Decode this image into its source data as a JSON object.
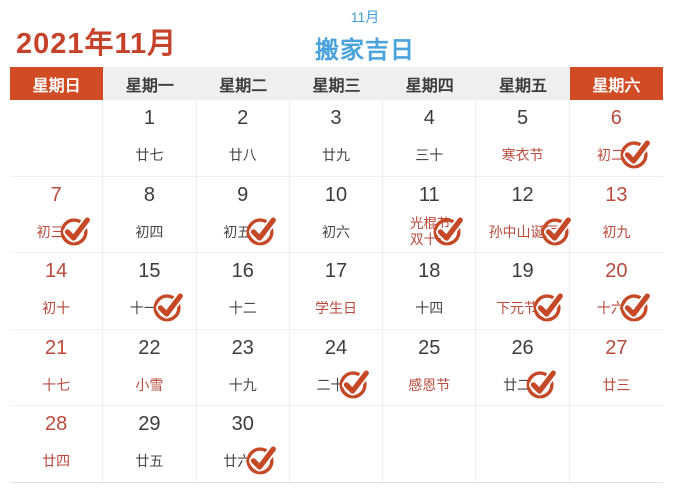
{
  "header": {
    "title": "2021年11月",
    "subtitle_month": "11月",
    "subtitle": "搬家吉日"
  },
  "weekday_headers": [
    "星期日",
    "星期一",
    "星期二",
    "星期三",
    "星期四",
    "星期五",
    "星期六"
  ],
  "weekday_names_en": [
    "sunday",
    "monday",
    "tuesday",
    "wednesday",
    "thursday",
    "friday",
    "saturday"
  ],
  "highlight_columns": [
    0,
    6
  ],
  "colors": {
    "accent_orange": "#d14b24",
    "red_text": "#b94a3c",
    "blue_text": "#4aa3dc",
    "title_red": "#c4432a",
    "dark_text": "#3c3c3c",
    "header_bg": "#f0efed",
    "check_color": "#c54827"
  },
  "icons": {
    "check": "check-stamp-icon"
  },
  "weeks": [
    [
      {
        "date": "",
        "lunar": "",
        "lunar_red": false,
        "checked": false
      },
      {
        "date": "1",
        "lunar": "廿七",
        "lunar_red": false,
        "checked": false
      },
      {
        "date": "2",
        "lunar": "廿八",
        "lunar_red": false,
        "checked": false
      },
      {
        "date": "3",
        "lunar": "廿九",
        "lunar_red": false,
        "checked": false
      },
      {
        "date": "4",
        "lunar": "三十",
        "lunar_red": false,
        "checked": false
      },
      {
        "date": "5",
        "lunar": "寒衣节",
        "lunar_red": true,
        "checked": false
      },
      {
        "date": "6",
        "lunar": "初二",
        "lunar_red": true,
        "checked": true
      }
    ],
    [
      {
        "date": "7",
        "lunar": "初三",
        "lunar_red": true,
        "checked": true
      },
      {
        "date": "8",
        "lunar": "初四",
        "lunar_red": false,
        "checked": false
      },
      {
        "date": "9",
        "lunar": "初五",
        "lunar_red": false,
        "checked": true
      },
      {
        "date": "10",
        "lunar": "初六",
        "lunar_red": false,
        "checked": false
      },
      {
        "date": "11",
        "lunar": "光棍节\n双十一",
        "lunar_red": true,
        "checked": true
      },
      {
        "date": "12",
        "lunar": "孙中山诞辰",
        "lunar_red": true,
        "checked": true
      },
      {
        "date": "13",
        "lunar": "初九",
        "lunar_red": true,
        "checked": false
      }
    ],
    [
      {
        "date": "14",
        "lunar": "初十",
        "lunar_red": true,
        "checked": false
      },
      {
        "date": "15",
        "lunar": "十一",
        "lunar_red": false,
        "checked": true
      },
      {
        "date": "16",
        "lunar": "十二",
        "lunar_red": false,
        "checked": false
      },
      {
        "date": "17",
        "lunar": "学生日",
        "lunar_red": true,
        "checked": false
      },
      {
        "date": "18",
        "lunar": "十四",
        "lunar_red": false,
        "checked": false
      },
      {
        "date": "19",
        "lunar": "下元节",
        "lunar_red": true,
        "checked": true
      },
      {
        "date": "20",
        "lunar": "十六",
        "lunar_red": true,
        "checked": true
      }
    ],
    [
      {
        "date": "21",
        "lunar": "十七",
        "lunar_red": true,
        "checked": false
      },
      {
        "date": "22",
        "lunar": "小雪",
        "lunar_red": true,
        "checked": false
      },
      {
        "date": "23",
        "lunar": "十九",
        "lunar_red": false,
        "checked": false
      },
      {
        "date": "24",
        "lunar": "二十",
        "lunar_red": false,
        "checked": true
      },
      {
        "date": "25",
        "lunar": "感恩节",
        "lunar_red": true,
        "checked": false
      },
      {
        "date": "26",
        "lunar": "廿二",
        "lunar_red": false,
        "checked": true
      },
      {
        "date": "27",
        "lunar": "廿三",
        "lunar_red": true,
        "checked": false
      }
    ],
    [
      {
        "date": "28",
        "lunar": "廿四",
        "lunar_red": true,
        "checked": false
      },
      {
        "date": "29",
        "lunar": "廿五",
        "lunar_red": false,
        "checked": false
      },
      {
        "date": "30",
        "lunar": "廿六",
        "lunar_red": false,
        "checked": true
      },
      {
        "date": "",
        "lunar": "",
        "lunar_red": false,
        "checked": false
      },
      {
        "date": "",
        "lunar": "",
        "lunar_red": false,
        "checked": false
      },
      {
        "date": "",
        "lunar": "",
        "lunar_red": false,
        "checked": false
      },
      {
        "date": "",
        "lunar": "",
        "lunar_red": false,
        "checked": false
      }
    ]
  ]
}
